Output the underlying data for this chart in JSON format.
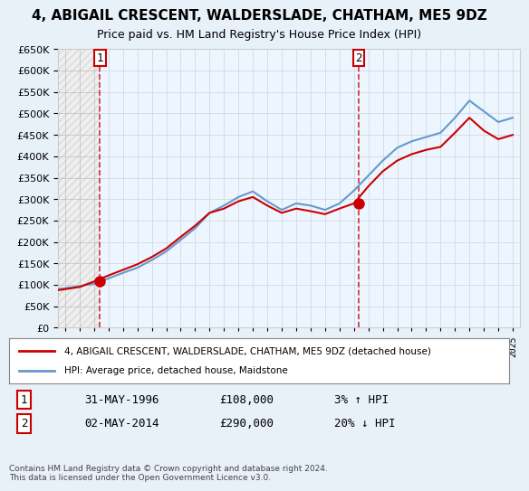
{
  "title": "4, ABIGAIL CRESCENT, WALDERSLADE, CHATHAM, ME5 9DZ",
  "subtitle": "Price paid vs. HM Land Registry's House Price Index (HPI)",
  "legend_line1": "4, ABIGAIL CRESCENT, WALDERSLADE, CHATHAM, ME5 9DZ (detached house)",
  "legend_line2": "HPI: Average price, detached house, Maidstone",
  "annotation1_label": "1",
  "annotation1_date": "31-MAY-1996",
  "annotation1_price": "£108,000",
  "annotation1_hpi": "3% ↑ HPI",
  "annotation2_label": "2",
  "annotation2_date": "02-MAY-2014",
  "annotation2_price": "£290,000",
  "annotation2_hpi": "20% ↓ HPI",
  "footnote": "Contains HM Land Registry data © Crown copyright and database right 2024.\nThis data is licensed under the Open Government Licence v3.0.",
  "sale1_year": 1996.41,
  "sale1_value": 108000,
  "sale2_year": 2014.33,
  "sale2_value": 290000,
  "price_line_color": "#cc0000",
  "hpi_line_color": "#6699cc",
  "sale_marker_color": "#cc0000",
  "vline_color": "#cc0000",
  "background_color": "#e8f0f8",
  "plot_bg_color": "#ffffff",
  "grid_color": "#cccccc",
  "ylim": [
    0,
    650000
  ],
  "yticks": [
    0,
    50000,
    100000,
    150000,
    200000,
    250000,
    300000,
    350000,
    400000,
    450000,
    500000,
    550000,
    600000,
    650000
  ],
  "xlim_start": 1993.5,
  "xlim_end": 2025.5,
  "hpi_years": [
    1993,
    1994,
    1995,
    1996,
    1997,
    1998,
    1999,
    2000,
    2001,
    2002,
    2003,
    2004,
    2005,
    2006,
    2007,
    2008,
    2009,
    2010,
    2011,
    2012,
    2013,
    2014,
    2015,
    2016,
    2017,
    2018,
    2019,
    2020,
    2021,
    2022,
    2023,
    2024,
    2025
  ],
  "hpi_values": [
    88000,
    92000,
    97000,
    103000,
    115000,
    128000,
    140000,
    158000,
    178000,
    205000,
    232000,
    268000,
    285000,
    305000,
    318000,
    295000,
    275000,
    290000,
    285000,
    275000,
    290000,
    320000,
    355000,
    390000,
    420000,
    435000,
    445000,
    455000,
    490000,
    530000,
    505000,
    480000,
    490000
  ],
  "price_years": [
    1993,
    1994,
    1995,
    1996,
    1997,
    1998,
    1999,
    2000,
    2001,
    2002,
    2003,
    2004,
    2005,
    2006,
    2007,
    2008,
    2009,
    2010,
    2011,
    2012,
    2013,
    2014,
    2015,
    2016,
    2017,
    2018,
    2019,
    2020,
    2021,
    2022,
    2023,
    2024,
    2025
  ],
  "price_values": [
    85000,
    90000,
    95000,
    108000,
    122000,
    135000,
    148000,
    165000,
    185000,
    212000,
    238000,
    268000,
    278000,
    295000,
    305000,
    285000,
    268000,
    278000,
    272000,
    265000,
    278000,
    290000,
    330000,
    365000,
    390000,
    405000,
    415000,
    422000,
    455000,
    490000,
    460000,
    440000,
    450000
  ]
}
